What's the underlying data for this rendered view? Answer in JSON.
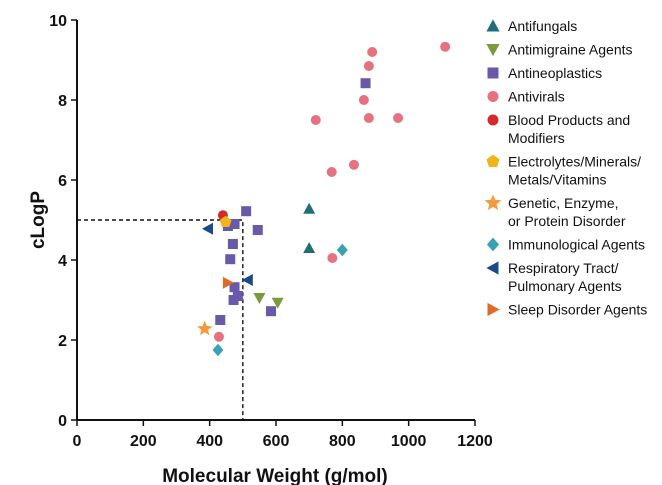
{
  "chart_data": {
    "type": "scatter",
    "xlabel": "Molecular Weight (g/mol)",
    "ylabel": "cLogP",
    "xlim": [
      0,
      1200
    ],
    "ylim": [
      0,
      10
    ],
    "xticks": [
      0,
      200,
      400,
      600,
      800,
      1000,
      1200
    ],
    "yticks": [
      0,
      2,
      4,
      6,
      8,
      10
    ],
    "grid": false,
    "legend_position": "right",
    "reference_lines": {
      "x": 500,
      "y": 5,
      "style": "dashed"
    },
    "series": [
      {
        "name": "Antifungals",
        "marker": "triangle-up",
        "color": "#1f6e78",
        "points": [
          [
            700,
            5.28
          ],
          [
            700,
            4.3
          ]
        ]
      },
      {
        "name": "Antimigraine Agents",
        "marker": "triangle-down",
        "color": "#7a9a3c",
        "points": [
          [
            550,
            3.05
          ],
          [
            605,
            2.93
          ]
        ]
      },
      {
        "name": "Antineoplastics",
        "marker": "square",
        "color": "#6a58a8",
        "points": [
          [
            870,
            8.42
          ],
          [
            510,
            5.22
          ],
          [
            475,
            4.9
          ],
          [
            455,
            4.85
          ],
          [
            545,
            4.75
          ],
          [
            470,
            4.4
          ],
          [
            462,
            4.02
          ],
          [
            475,
            3.32
          ],
          [
            485,
            3.1
          ],
          [
            472,
            3.0
          ],
          [
            585,
            2.72
          ],
          [
            432,
            2.5
          ]
        ]
      },
      {
        "name": "Antivirals",
        "marker": "circle",
        "color": "#e5727e",
        "points": [
          [
            1110,
            9.33
          ],
          [
            890,
            9.2
          ],
          [
            880,
            8.85
          ],
          [
            865,
            8.0
          ],
          [
            880,
            7.55
          ],
          [
            968,
            7.55
          ],
          [
            720,
            7.5
          ],
          [
            835,
            6.38
          ],
          [
            768,
            6.2
          ],
          [
            770,
            4.05
          ],
          [
            428,
            2.08
          ]
        ]
      },
      {
        "name": "Blood Products and\nModifiers",
        "marker": "circle",
        "color": "#d42a2a",
        "points": [
          [
            440,
            5.12
          ]
        ]
      },
      {
        "name": "Electrolytes/Minerals/\nMetals/Vitamins",
        "marker": "pentagon",
        "color": "#f2b41c",
        "points": [
          [
            448,
            4.95
          ]
        ]
      },
      {
        "name": "Genetic, Enzyme,\nor Protein Disorder",
        "marker": "star",
        "color": "#f59a3c",
        "points": [
          [
            385,
            2.28
          ]
        ]
      },
      {
        "name": "Immunological Agents",
        "marker": "diamond",
        "color": "#3aa0b5",
        "points": [
          [
            800,
            4.25
          ],
          [
            425,
            1.75
          ]
        ]
      },
      {
        "name": "Respiratory Tract/\nPulmonary Agents",
        "marker": "triangle-left",
        "color": "#1b4a8a",
        "points": [
          [
            395,
            4.78
          ],
          [
            515,
            3.5
          ]
        ]
      },
      {
        "name": "Sleep Disorder Agents",
        "marker": "triangle-right",
        "color": "#e06b26",
        "points": [
          [
            455,
            3.43
          ]
        ]
      }
    ]
  }
}
